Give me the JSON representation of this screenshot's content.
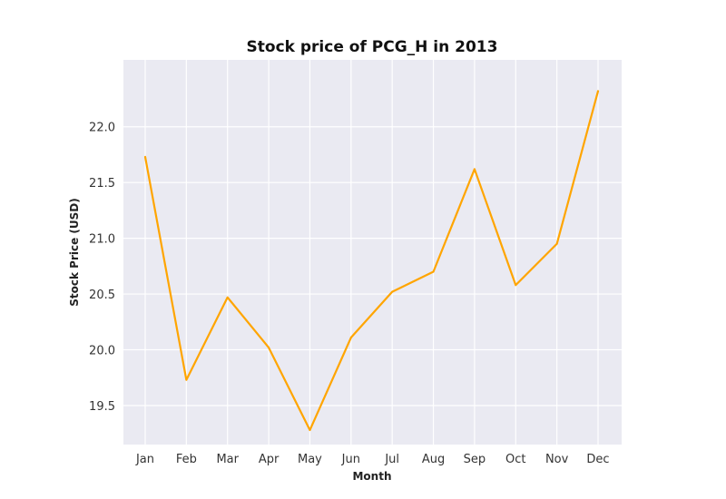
{
  "chart_data": {
    "type": "line",
    "title": "Stock price of PCG_H in 2013",
    "xlabel": "Month",
    "ylabel": "Stock Price (USD)",
    "categories": [
      "Jan",
      "Feb",
      "Mar",
      "Apr",
      "May",
      "Jun",
      "Jul",
      "Aug",
      "Sep",
      "Oct",
      "Nov",
      "Dec"
    ],
    "series": [
      {
        "values": [
          21.73,
          19.73,
          20.47,
          20.02,
          19.28,
          20.11,
          20.52,
          20.7,
          21.62,
          20.58,
          20.95,
          22.32
        ],
        "color": "#FFA500"
      }
    ],
    "yticks": [
      19.5,
      20.0,
      20.5,
      21.0,
      21.5,
      22.0
    ],
    "ylim": [
      19.15,
      22.6
    ],
    "grid": true,
    "plot_background": "#EAEAF2",
    "grid_color": "#FFFFFF"
  }
}
